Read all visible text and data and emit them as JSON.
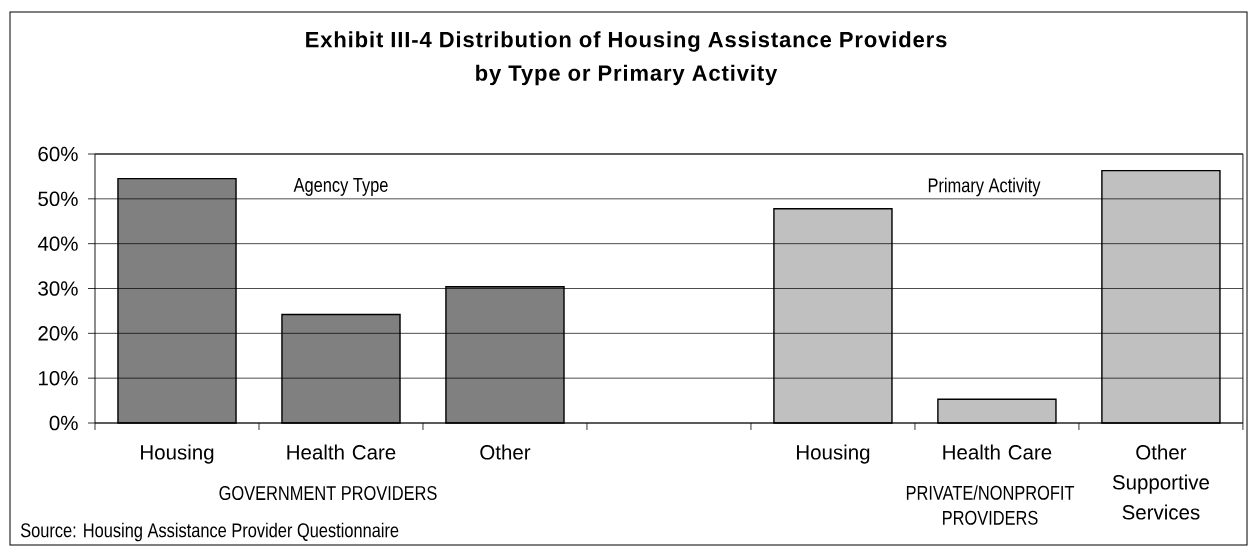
{
  "chart_data": {
    "type": "bar",
    "title": "Exhibit III-4 Distribution of Housing Assistance Providers by Type or Primary Activity",
    "categories": [
      "Housing",
      "Health Care",
      "Other",
      null,
      "Housing",
      "Health Care",
      "Other Supportive Services"
    ],
    "series": [
      {
        "color": "#808080",
        "values": [
          54.5,
          24.2,
          30.4,
          null,
          null,
          null,
          null
        ]
      },
      {
        "color": "#c0c0c0",
        "values": [
          null,
          null,
          null,
          null,
          47.8,
          5.3,
          56.3
        ]
      }
    ],
    "ylim": [
      0,
      60
    ],
    "yticks": [
      {
        "value": 0,
        "label": "0%"
      },
      {
        "value": 10,
        "label": "10%"
      },
      {
        "value": 20,
        "label": "20%"
      },
      {
        "value": 30,
        "label": "30%"
      },
      {
        "value": 40,
        "label": "40%"
      },
      {
        "value": 50,
        "label": "50%"
      },
      {
        "value": 60,
        "label": "60%"
      }
    ],
    "grid": "y",
    "annotations": [
      "Agency Type",
      "Primary Activity",
      "GOVERNMENT PROVIDERS",
      "PRIVATE/NONPROFIT PROVIDERS",
      "Source: Housing Assistance Provider Questionnaire"
    ]
  }
}
